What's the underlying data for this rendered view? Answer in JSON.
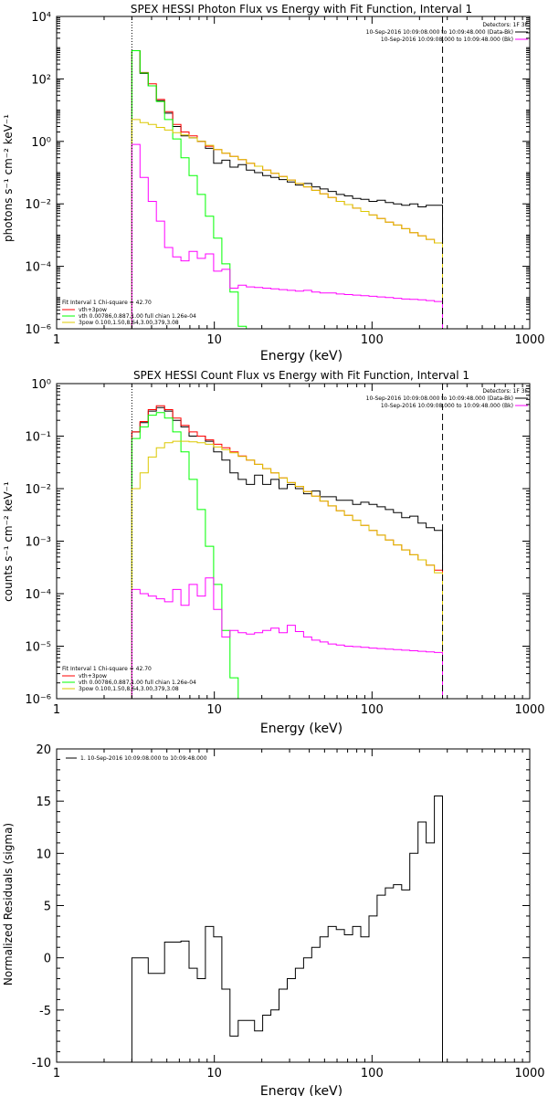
{
  "chart_data": [
    {
      "type": "line",
      "title": "SPEX HESSI Photon Flux vs Energy with Fit Function, Interval 1",
      "xlabel": "Energy (keV)",
      "ylabel": "photons s⁻¹ cm⁻² keV⁻¹",
      "xscale": "log",
      "yscale": "log",
      "xlim": [
        1,
        1000
      ],
      "ylim": [
        1e-06,
        10000
      ],
      "x_ticks": [
        1,
        10,
        100,
        1000
      ],
      "x_tick_labels": [
        "1",
        "10",
        "100",
        "1000"
      ],
      "y_ticks": [
        1e-06,
        0.0001,
        0.01,
        1,
        100,
        10000
      ],
      "y_tick_labels": [
        "10⁻⁶",
        "10⁻⁴",
        "10⁻²",
        "10⁰",
        "10²",
        "10⁴"
      ],
      "vlines": [
        {
          "x": 3,
          "style": "dotted",
          "color": "#000000"
        },
        {
          "x": 280,
          "style": "dashed",
          "color": "#000000"
        }
      ],
      "legend_top_right": {
        "detectors": "Detectors: 1F 3F",
        "entries": [
          {
            "label": "10-Sep-2016 10:09:08.000 to 10:09:48.000 (Data-Bk)",
            "color": "#000000"
          },
          {
            "label": "10-Sep-2016 10:09:08.000 to 10:09:48.000 (Bk)",
            "color": "#ff00ff"
          }
        ]
      },
      "legend_bottom_left": {
        "header": "Fit Interval 1   Chi-square = 42.70",
        "entries": [
          {
            "label": "vth+3pow",
            "color": "#ff0000"
          },
          {
            "label": "vth 0.00786,0.887,1.00  full chian 1.26e-04",
            "color": "#00ff00"
          },
          {
            "label": "3pow 0.100,1.50,8.64,3.00,379,3.08",
            "color": "#dcc800"
          }
        ]
      },
      "series": [
        {
          "color": "#000000",
          "edges": [
            3,
            280
          ],
          "values": [
            800,
            150,
            60,
            20,
            8,
            3,
            1.5,
            1.3,
            1,
            0.6,
            0.2,
            0.25,
            0.15,
            0.18,
            0.12,
            0.1,
            0.08,
            0.07,
            0.06,
            0.05,
            0.04,
            0.045,
            0.035,
            0.03,
            0.025,
            0.02,
            0.018,
            0.015,
            0.014,
            0.012,
            0.013,
            0.011,
            0.01,
            0.009,
            0.01,
            0.008,
            0.009,
            0.009
          ]
        },
        {
          "color": "#ff0000",
          "edges": [
            3,
            280
          ],
          "values": [
            800,
            160,
            70,
            22,
            9,
            3.5,
            2,
            1.5,
            1,
            0.7,
            0.55,
            0.42,
            0.33,
            0.26,
            0.2,
            0.16,
            0.12,
            0.095,
            0.075,
            0.058,
            0.045,
            0.035,
            0.027,
            0.021,
            0.016,
            0.012,
            0.0095,
            0.0073,
            0.0057,
            0.0044,
            0.0034,
            0.0026,
            0.0021,
            0.0016,
            0.0012,
            0.00095,
            0.00073,
            0.00056
          ]
        },
        {
          "color": "#00ff00",
          "edges": [
            3,
            280
          ],
          "values": [
            800,
            155,
            60,
            19,
            5,
            1.2,
            0.3,
            0.08,
            0.02,
            0.004,
            0.0008,
            0.00012,
            1.5e-05,
            1.2e-06,
            1e-07
          ]
        },
        {
          "color": "#dcc800",
          "edges": [
            3,
            280
          ],
          "values": [
            5,
            4,
            3.5,
            2.8,
            2.3,
            1.9,
            1.6,
            1.3,
            1,
            0.75,
            0.55,
            0.42,
            0.33,
            0.26,
            0.2,
            0.16,
            0.12,
            0.095,
            0.075,
            0.058,
            0.045,
            0.035,
            0.027,
            0.021,
            0.016,
            0.012,
            0.0095,
            0.0073,
            0.0057,
            0.0044,
            0.0034,
            0.0026,
            0.0021,
            0.0016,
            0.0012,
            0.00095,
            0.00073,
            0.00056
          ]
        },
        {
          "color": "#ff00ff",
          "edges": [
            3,
            280
          ],
          "values": [
            0.8,
            0.07,
            0.012,
            0.0028,
            0.0004,
            0.0002,
            0.00015,
            0.0003,
            0.00018,
            0.00025,
            7e-05,
            8e-05,
            2e-05,
            2.5e-05,
            2.2e-05,
            2.1e-05,
            2e-05,
            1.9e-05,
            1.8e-05,
            1.7e-05,
            1.6e-05,
            1.7e-05,
            1.5e-05,
            1.4e-05,
            1.4e-05,
            1.3e-05,
            1.25e-05,
            1.2e-05,
            1.15e-05,
            1.1e-05,
            1.05e-05,
            1e-05,
            9.5e-06,
            9e-06,
            8.8e-06,
            8.5e-06,
            8e-06,
            7.5e-06
          ]
        }
      ]
    },
    {
      "type": "line",
      "title": "SPEX HESSI Count Flux vs Energy with Fit Function, Interval 1",
      "xlabel": "Energy (keV)",
      "ylabel": "counts s⁻¹ cm⁻² keV⁻¹",
      "xscale": "log",
      "yscale": "log",
      "xlim": [
        1,
        1000
      ],
      "ylim": [
        1e-06,
        1
      ],
      "x_ticks": [
        1,
        10,
        100,
        1000
      ],
      "x_tick_labels": [
        "1",
        "10",
        "100",
        "1000"
      ],
      "y_ticks": [
        1e-06,
        1e-05,
        0.0001,
        0.001,
        0.01,
        0.1,
        1
      ],
      "y_tick_labels": [
        "10⁻⁶",
        "10⁻⁵",
        "10⁻⁴",
        "10⁻³",
        "10⁻²",
        "10⁻¹",
        "10⁰"
      ],
      "vlines": [
        {
          "x": 3,
          "style": "dotted",
          "color": "#000000"
        },
        {
          "x": 280,
          "style": "dashed",
          "color": "#000000"
        }
      ],
      "legend_top_right": {
        "detectors": "Detectors: 1F 3F",
        "entries": [
          {
            "label": "10-Sep-2016 10:09:08.000 to 10:09:48.000 (Data-Bk)",
            "color": "#000000"
          },
          {
            "label": "10-Sep-2016 10:09:08.000 to 10:09:48.000 (Bk)",
            "color": "#ff00ff"
          }
        ]
      },
      "legend_bottom_left": {
        "header": "Fit Interval 1   Chi-square = 42.70",
        "entries": [
          {
            "label": "vth+3pow",
            "color": "#ff0000"
          },
          {
            "label": "vth 0.00786,0.887,1.00  full chian 1.26e-04",
            "color": "#00ff00"
          },
          {
            "label": "3pow 0.100,1.50,8.64,3.00,379,3.08",
            "color": "#dcc800"
          }
        ]
      },
      "series": [
        {
          "color": "#000000",
          "edges": [
            3,
            280
          ],
          "values": [
            0.12,
            0.18,
            0.3,
            0.35,
            0.3,
            0.2,
            0.15,
            0.1,
            0.1,
            0.08,
            0.05,
            0.035,
            0.02,
            0.015,
            0.012,
            0.018,
            0.012,
            0.015,
            0.01,
            0.012,
            0.01,
            0.008,
            0.009,
            0.007,
            0.007,
            0.006,
            0.006,
            0.005,
            0.0055,
            0.005,
            0.0045,
            0.004,
            0.0035,
            0.0028,
            0.003,
            0.0022,
            0.0018,
            0.0016
          ]
        },
        {
          "color": "#ff0000",
          "edges": [
            3,
            280
          ],
          "values": [
            0.12,
            0.19,
            0.32,
            0.38,
            0.32,
            0.22,
            0.16,
            0.12,
            0.1,
            0.085,
            0.07,
            0.06,
            0.05,
            0.042,
            0.035,
            0.029,
            0.024,
            0.02,
            0.016,
            0.013,
            0.011,
            0.0088,
            0.0072,
            0.0058,
            0.0047,
            0.0038,
            0.0031,
            0.0025,
            0.002,
            0.0016,
            0.0013,
            0.00105,
            0.00085,
            0.00068,
            0.00055,
            0.00044,
            0.00035,
            0.00028
          ]
        },
        {
          "color": "#00ff00",
          "edges": [
            3,
            280
          ],
          "values": [
            0.09,
            0.15,
            0.25,
            0.28,
            0.22,
            0.12,
            0.05,
            0.015,
            0.004,
            0.0008,
            0.00015,
            2e-05,
            2.5e-06,
            3e-07
          ]
        },
        {
          "color": "#dcc800",
          "edges": [
            3,
            280
          ],
          "values": [
            0.01,
            0.02,
            0.04,
            0.06,
            0.075,
            0.08,
            0.08,
            0.078,
            0.075,
            0.07,
            0.062,
            0.055,
            0.048,
            0.041,
            0.035,
            0.029,
            0.024,
            0.02,
            0.016,
            0.013,
            0.011,
            0.0088,
            0.0072,
            0.0058,
            0.0047,
            0.0038,
            0.0031,
            0.0025,
            0.002,
            0.0016,
            0.0013,
            0.00105,
            0.00085,
            0.00068,
            0.00055,
            0.00044,
            0.00035,
            0.00025
          ]
        },
        {
          "color": "#ff00ff",
          "edges": [
            3,
            280
          ],
          "values": [
            0.00012,
            0.0001,
            9e-05,
            8e-05,
            7e-05,
            0.00012,
            6e-05,
            0.00015,
            9e-05,
            0.0002,
            5e-05,
            1.5e-05,
            2e-05,
            1.8e-05,
            1.7e-05,
            1.8e-05,
            2e-05,
            2.2e-05,
            1.8e-05,
            2.5e-05,
            1.9e-05,
            1.5e-05,
            1.3e-05,
            1.2e-05,
            1.1e-05,
            1.05e-05,
            1e-05,
            9.8e-06,
            9.5e-06,
            9.2e-06,
            9e-06,
            8.8e-06,
            8.6e-06,
            8.4e-06,
            8.2e-06,
            8e-06,
            7.8e-06,
            7.6e-06
          ]
        }
      ]
    },
    {
      "type": "line",
      "title": "",
      "xlabel": "Energy (keV)",
      "ylabel": "Normalized Residuals (sigma)",
      "xscale": "log",
      "yscale": "linear",
      "xlim": [
        1,
        1000
      ],
      "ylim": [
        -10,
        20
      ],
      "x_ticks": [
        1,
        10,
        100,
        1000
      ],
      "x_tick_labels": [
        "1",
        "10",
        "100",
        "1000"
      ],
      "y_ticks": [
        -10,
        -5,
        0,
        5,
        10,
        15,
        20
      ],
      "y_tick_labels": [
        "-10",
        "-5",
        "0",
        "5",
        "10",
        "15",
        "20"
      ],
      "legend_top_left": {
        "entries": [
          {
            "label": "1. 10-Sep-2016 10:09:08.000 to 10:09:48.000",
            "color": "#000000"
          }
        ]
      },
      "series": [
        {
          "color": "#000000",
          "baseline": -10,
          "edges": [
            3,
            280
          ],
          "values": [
            0,
            0,
            -1.5,
            -1.5,
            1.5,
            1.5,
            1.6,
            -1,
            -2,
            3,
            2,
            -3,
            -7.5,
            -6,
            -6,
            -7,
            -5.5,
            -5,
            -3,
            -2,
            -1,
            0,
            1,
            2,
            3,
            2.7,
            2.2,
            3,
            2,
            4,
            6,
            6.7,
            7,
            6.5,
            10,
            13,
            11,
            15.5
          ]
        }
      ]
    }
  ]
}
